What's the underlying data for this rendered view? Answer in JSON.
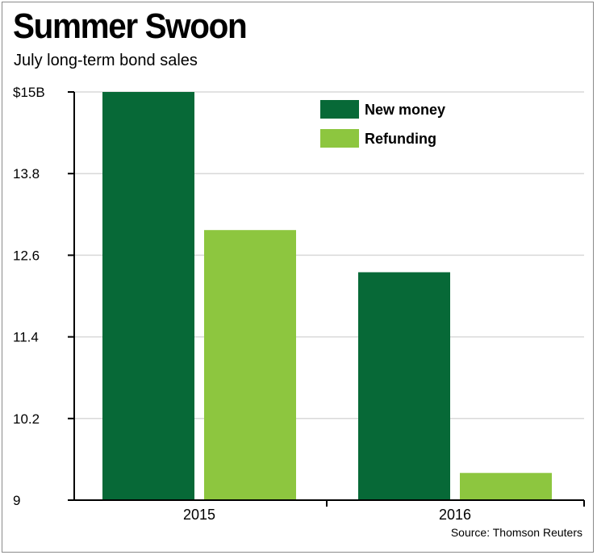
{
  "header": {
    "title": "Summer Swoon",
    "subtitle": "July long-term bond sales"
  },
  "footer": {
    "source": "Source: Thomson Reuters"
  },
  "colors": {
    "new_money": "#076937",
    "refunding": "#8dc63f",
    "grid": "#d9d9d9",
    "axis": "#000000"
  },
  "chart_data": {
    "type": "bar",
    "categories": [
      "2015",
      "2016"
    ],
    "series": [
      {
        "name": "New money",
        "values": [
          15.0,
          12.35
        ]
      },
      {
        "name": "Refunding",
        "values": [
          12.97,
          9.4
        ]
      }
    ],
    "title": "Summer Swoon",
    "subtitle": "July long-term bond sales",
    "ylim": [
      9,
      15
    ],
    "yticks": [
      9,
      10.2,
      11.4,
      12.6,
      13.8,
      15
    ],
    "ytick_labels": [
      "9",
      "10.2",
      "11.4",
      "12.6",
      "13.8",
      "$15B"
    ],
    "grid": true,
    "legend_position": "top-right"
  }
}
